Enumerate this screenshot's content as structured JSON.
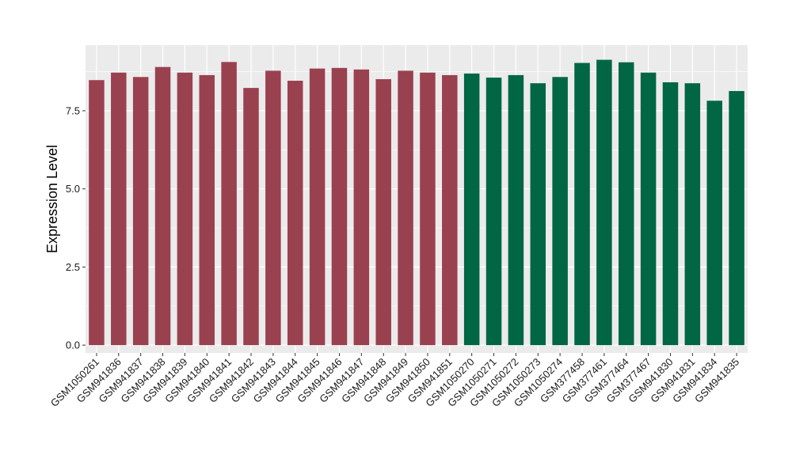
{
  "chart_data": {
    "type": "bar",
    "title": "",
    "xlabel": "",
    "ylabel": "Expression Level",
    "ylim": [
      -0.25,
      9.6
    ],
    "yticks": [
      0.0,
      2.5,
      5.0,
      7.5
    ],
    "ytick_labels": [
      "0.0",
      "2.5",
      "5.0",
      "7.5"
    ],
    "grid": true,
    "legend": "none",
    "categories": [
      "GSM1050261",
      "GSM941836",
      "GSM941837",
      "GSM941838",
      "GSM941839",
      "GSM941840",
      "GSM941841",
      "GSM941842",
      "GSM941843",
      "GSM941844",
      "GSM941845",
      "GSM941846",
      "GSM941847",
      "GSM941848",
      "GSM941849",
      "GSM941850",
      "GSM941851",
      "GSM1050270",
      "GSM1050271",
      "GSM1050272",
      "GSM1050273",
      "GSM1050274",
      "GSM377458",
      "GSM377461",
      "GSM377464",
      "GSM377467",
      "GSM941830",
      "GSM941831",
      "GSM941834",
      "GSM941835"
    ],
    "values": [
      8.48,
      8.72,
      8.58,
      8.9,
      8.72,
      8.64,
      9.06,
      8.23,
      8.78,
      8.46,
      8.85,
      8.87,
      8.82,
      8.51,
      8.78,
      8.72,
      8.64,
      8.69,
      8.56,
      8.64,
      8.38,
      8.58,
      9.03,
      9.13,
      9.05,
      8.72,
      8.41,
      8.38,
      7.82,
      8.13
    ],
    "colors": [
      "#9a4150",
      "#9a4150",
      "#9a4150",
      "#9a4150",
      "#9a4150",
      "#9a4150",
      "#9a4150",
      "#9a4150",
      "#9a4150",
      "#9a4150",
      "#9a4150",
      "#9a4150",
      "#9a4150",
      "#9a4150",
      "#9a4150",
      "#9a4150",
      "#9a4150",
      "#006644",
      "#006644",
      "#006644",
      "#006644",
      "#006644",
      "#006644",
      "#006644",
      "#006644",
      "#006644",
      "#006644",
      "#006644",
      "#006644",
      "#006644"
    ],
    "panel_background": "#ebebeb",
    "grid_color": "#ffffff"
  }
}
